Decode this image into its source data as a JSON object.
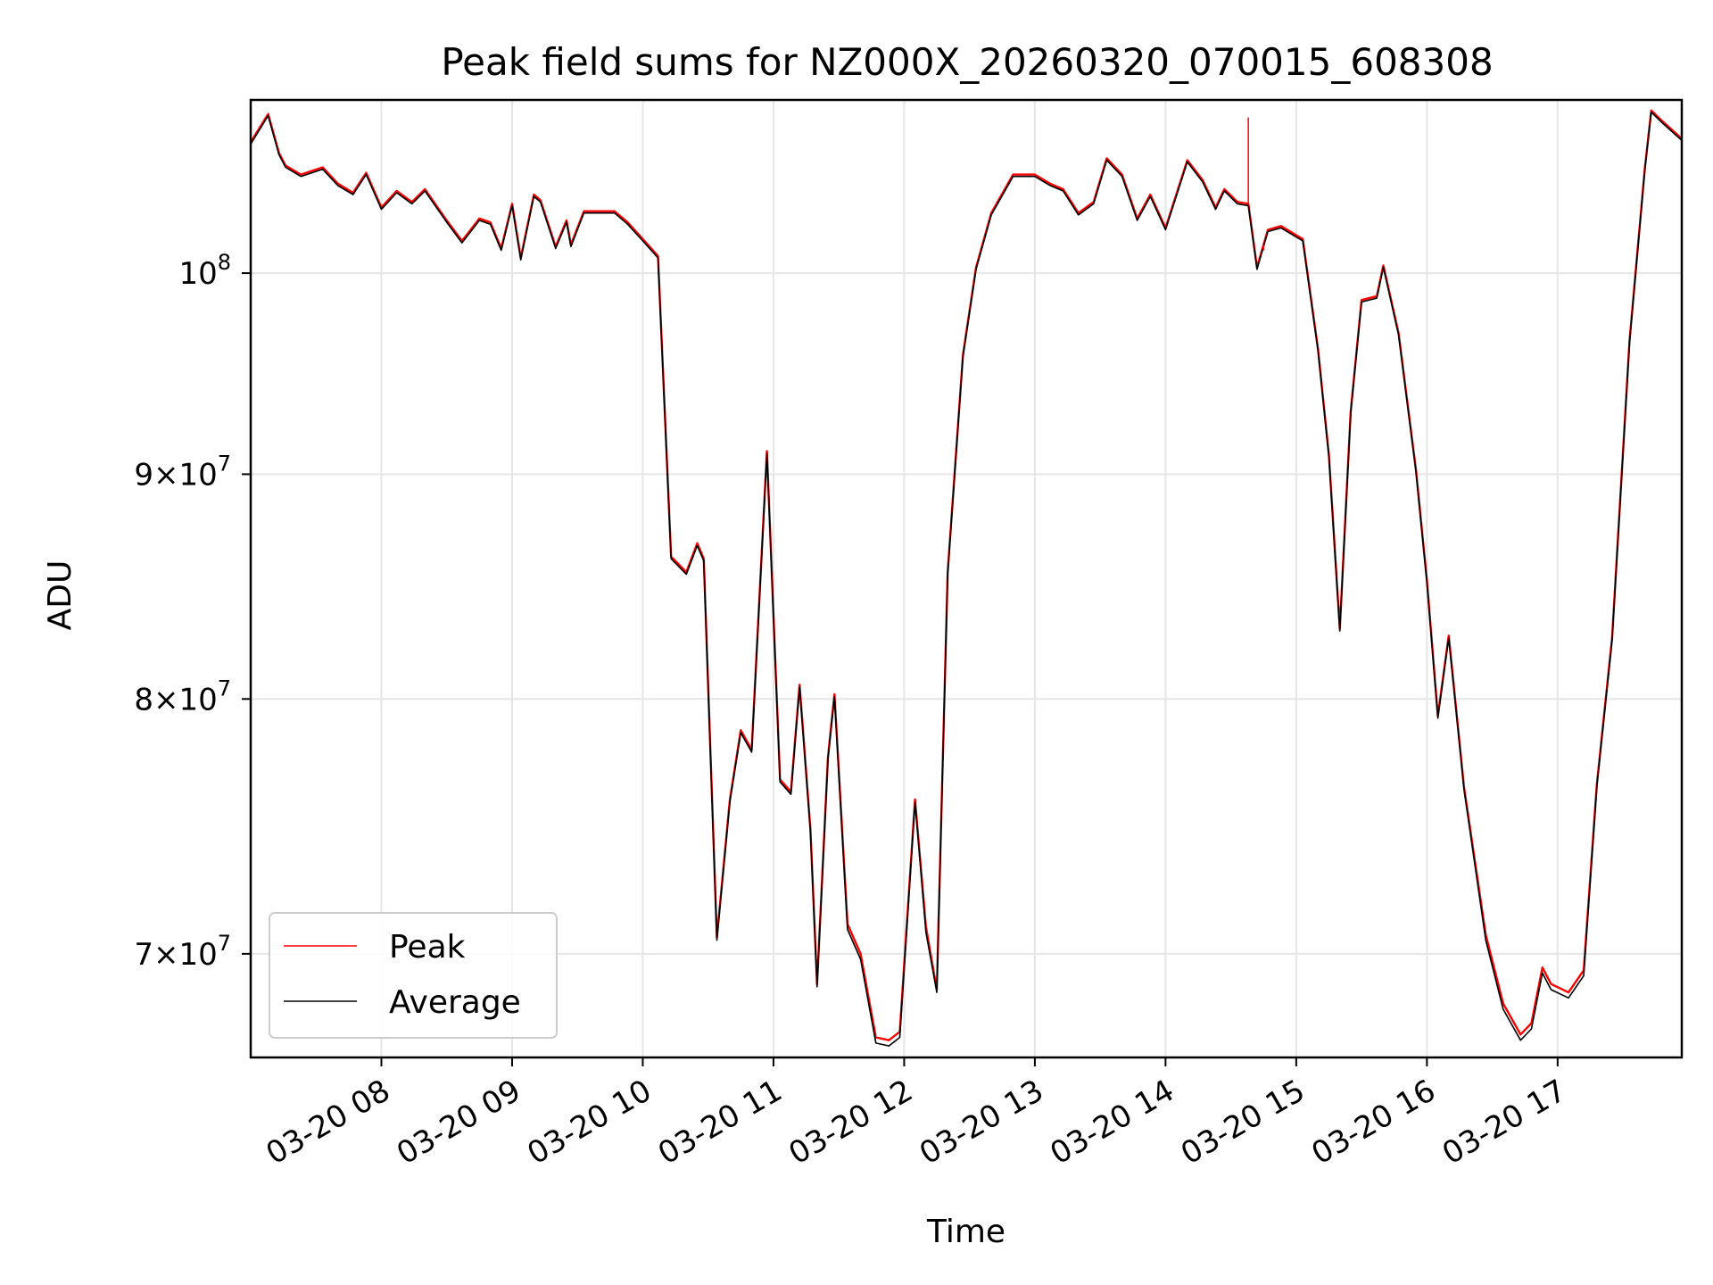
{
  "chart_data": {
    "type": "line",
    "title": "Peak field sums for NZ000X_20260320_070015_608308",
    "xlabel": "Time",
    "ylabel": "ADU",
    "yscale": "log",
    "ylim": [
      66300000,
      109500000
    ],
    "xlim": [
      "03-20 07:00",
      "03-20 17:57"
    ],
    "grid": true,
    "legend": "lower-left",
    "x_ticks": [
      "03-20 08",
      "03-20 09",
      "03-20 10",
      "03-20 11",
      "03-20 12",
      "03-20 13",
      "03-20 14",
      "03-20 15",
      "03-20 16",
      "03-20 17"
    ],
    "y_ticks": [
      {
        "value": 70000000,
        "base": "7",
        "exp": "7"
      },
      {
        "value": 80000000,
        "base": "8",
        "exp": "7"
      },
      {
        "value": 90000000,
        "base": "9",
        "exp": "7"
      },
      {
        "value": 100000000,
        "base": "10",
        "exp": "8"
      }
    ],
    "x": [
      "03-20 07:00",
      "03-20 07:08",
      "03-20 07:13",
      "03-20 07:16",
      "03-20 07:23",
      "03-20 07:33",
      "03-20 07:40",
      "03-20 07:47",
      "03-20 07:53",
      "03-20 08:00",
      "03-20 08:07",
      "03-20 08:14",
      "03-20 08:20",
      "03-20 08:30",
      "03-20 08:37",
      "03-20 08:45",
      "03-20 08:50",
      "03-20 08:55",
      "03-20 09:00",
      "03-20 09:04",
      "03-20 09:10",
      "03-20 09:13",
      "03-20 09:20",
      "03-20 09:25",
      "03-20 09:27",
      "03-20 09:33",
      "03-20 09:40",
      "03-20 09:47",
      "03-20 09:53",
      "03-20 10:00",
      "03-20 10:07",
      "03-20 10:13",
      "03-20 10:20",
      "03-20 10:25",
      "03-20 10:28",
      "03-20 10:34",
      "03-20 10:40",
      "03-20 10:45",
      "03-20 10:50",
      "03-20 10:57",
      "03-20 11:03",
      "03-20 11:08",
      "03-20 11:12",
      "03-20 11:17",
      "03-20 11:20",
      "03-20 11:25",
      "03-20 11:28",
      "03-20 11:34",
      "03-20 11:40",
      "03-20 11:47",
      "03-20 11:53",
      "03-20 11:58",
      "03-20 12:05",
      "03-20 12:10",
      "03-20 12:15",
      "03-20 12:20",
      "03-20 12:27",
      "03-20 12:33",
      "03-20 12:40",
      "03-20 12:50",
      "03-20 13:00",
      "03-20 13:07",
      "03-20 13:13",
      "03-20 13:20",
      "03-20 13:27",
      "03-20 13:33",
      "03-20 13:40",
      "03-20 13:47",
      "03-20 13:53",
      "03-20 14:00",
      "03-20 14:10",
      "03-20 14:17",
      "03-20 14:23",
      "03-20 14:27",
      "03-20 14:33",
      "03-20 14:38",
      "03-20 14:42",
      "03-20 14:47",
      "03-20 14:53",
      "03-20 15:03",
      "03-20 15:10",
      "03-20 15:15",
      "03-20 15:20",
      "03-20 15:25",
      "03-20 15:30",
      "03-20 15:37",
      "03-20 15:40",
      "03-20 15:47",
      "03-20 15:55",
      "03-20 16:00",
      "03-20 16:05",
      "03-20 16:10",
      "03-20 16:17",
      "03-20 16:27",
      "03-20 16:35",
      "03-20 16:43",
      "03-20 16:48",
      "03-20 16:53",
      "03-20 16:57",
      "03-20 17:05",
      "03-20 17:12",
      "03-20 17:18",
      "03-20 17:25",
      "03-20 17:33",
      "03-20 17:40",
      "03-20 17:43",
      "03-20 17:48",
      "03-20 17:57"
    ],
    "series": [
      {
        "name": "Peak",
        "color": "#ff0000",
        "values": [
          107100000,
          108700000,
          106500000,
          105800000,
          105300000,
          105700000,
          104800000,
          104300000,
          105400000,
          103500000,
          104400000,
          103800000,
          104500000,
          102800000,
          101700000,
          102900000,
          102700000,
          101300000,
          103700000,
          100800000,
          104200000,
          103900000,
          101400000,
          102800000,
          101500000,
          103300000,
          103300000,
          103300000,
          102700000,
          101800000,
          100900000,
          86200000,
          85500000,
          86800000,
          86100000,
          70600000,
          75900000,
          78700000,
          77900000,
          91100000,
          76700000,
          76200000,
          80600000,
          74700000,
          68900000,
          77600000,
          80200000,
          71100000,
          70000000,
          67000000,
          66900000,
          67200000,
          75900000,
          71000000,
          68700000,
          85500000,
          95800000,
          100300000,
          103200000,
          105300000,
          105300000,
          104800000,
          104500000,
          103200000,
          103800000,
          106200000,
          105300000,
          102900000,
          104200000,
          102400000,
          106100000,
          105000000,
          103500000,
          104500000,
          103800000,
          103700000,
          100300000,
          102300000,
          102500000,
          101800000,
          96100000,
          90900000,
          83000000,
          93000000,
          98600000,
          98800000,
          100400000,
          96900000,
          90200000,
          85100000,
          79300000,
          82700000,
          76400000,
          70700000,
          68200000,
          67100000,
          67500000,
          69500000,
          68900000,
          68600000,
          69400000,
          76500000,
          82600000,
          96500000,
          105600000,
          108900000,
          108300000,
          107300000
        ]
      },
      {
        "name": "Average",
        "color": "#000000",
        "values": [
          107000000,
          108600000,
          106400000,
          105700000,
          105200000,
          105600000,
          104700000,
          104200000,
          105300000,
          103400000,
          104300000,
          103700000,
          104400000,
          102700000,
          101600000,
          102800000,
          102600000,
          101200000,
          103600000,
          100700000,
          104100000,
          103800000,
          101300000,
          102700000,
          101400000,
          103200000,
          103200000,
          103200000,
          102600000,
          101700000,
          100800000,
          86100000,
          85400000,
          86700000,
          86000000,
          70500000,
          75800000,
          78600000,
          77800000,
          91000000,
          76600000,
          76100000,
          80500000,
          74600000,
          68800000,
          77500000,
          80100000,
          70900000,
          69800000,
          66800000,
          66700000,
          67000000,
          75800000,
          70800000,
          68600000,
          85400000,
          95700000,
          100200000,
          103100000,
          105200000,
          105200000,
          104700000,
          104400000,
          103100000,
          103700000,
          106100000,
          105200000,
          102800000,
          104100000,
          102300000,
          106000000,
          104900000,
          103400000,
          104400000,
          103700000,
          103600000,
          100200000,
          102200000,
          102400000,
          101700000,
          96000000,
          90800000,
          82900000,
          92900000,
          98500000,
          98700000,
          100300000,
          96800000,
          90100000,
          85000000,
          79200000,
          82600000,
          76300000,
          70500000,
          68000000,
          66900000,
          67300000,
          69300000,
          68700000,
          68400000,
          69200000,
          76400000,
          82500000,
          96400000,
          105500000,
          108800000,
          108200000,
          107200000
        ]
      }
    ],
    "spikes": [
      {
        "series": "Peak",
        "x": "03-20 14:38",
        "value": 108500000
      },
      {
        "series": "Peak",
        "x": "03-20 14:45",
        "value": 101200000
      }
    ]
  }
}
